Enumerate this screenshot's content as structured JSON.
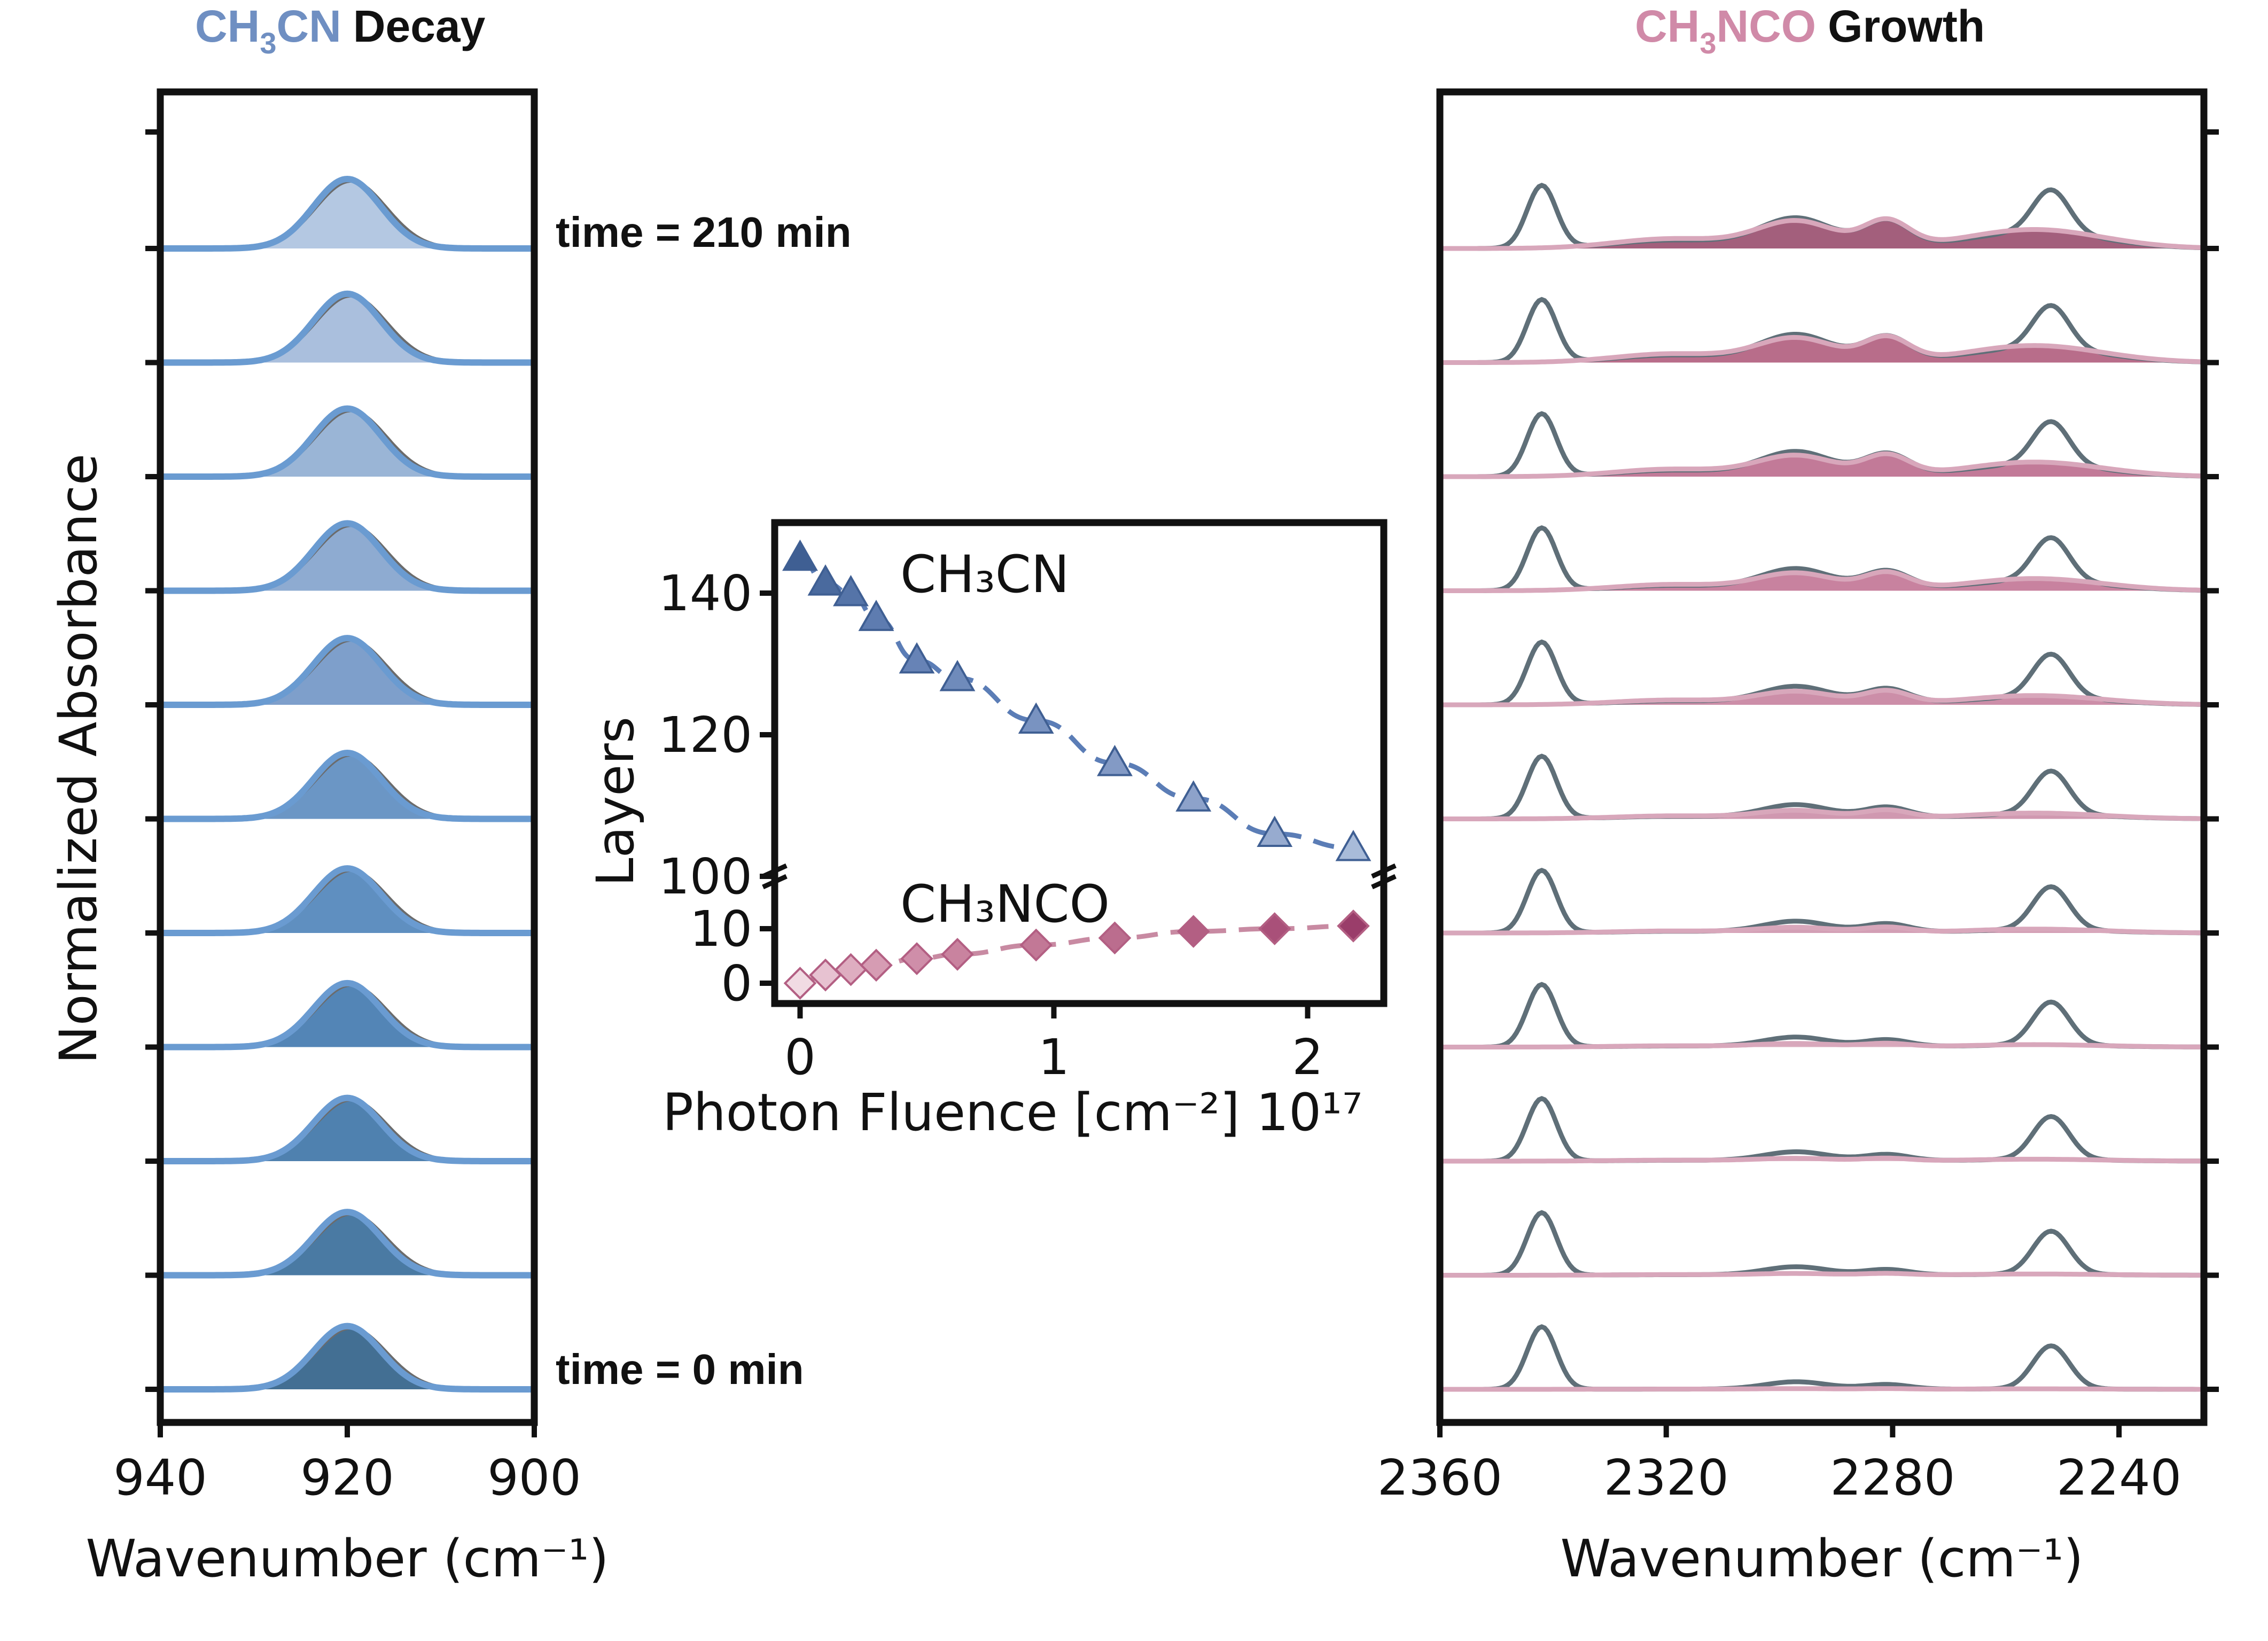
{
  "chart_data": [
    {
      "type": "line",
      "name": "ch3cn-decay",
      "title": {
        "species": "CH3CN",
        "subscript": "3",
        "prefix": "CH",
        "suffix": "CN",
        "word": "Decay"
      },
      "xlabel": "Wavenumber (cm⁻¹)",
      "ylabel": "Normalized Absorbance",
      "xlim": [
        940,
        900
      ],
      "xticks": [
        "940",
        "920",
        "900"
      ],
      "xtick_values": [
        940,
        920,
        900
      ],
      "time_labels": {
        "top": "time = 210 min",
        "bottom": "time = 0 min"
      },
      "peak_center": 920,
      "peak_width": 3.6,
      "n_traces": 11,
      "peak_heights": [
        0.91,
        0.91,
        0.91,
        0.92,
        0.93,
        0.95,
        0.96,
        0.97,
        0.98,
        0.99,
        1.0
      ],
      "fill_colors": [
        "#436f93",
        "#4a7aa3",
        "#4f81af",
        "#5385b6",
        "#5f8fc0",
        "#6b96c5",
        "#7e9fcb",
        "#8eabd1",
        "#9ab5d6",
        "#aabfdd",
        "#b4c8e2"
      ],
      "line_color": "#6a9bd1"
    },
    {
      "type": "scatter",
      "name": "layers-vs-fluence",
      "xlabel": "Photon Fluence [cm⁻²] 10¹⁷",
      "ylabel": "Layers",
      "xlim": [
        -0.1,
        2.3
      ],
      "xticks": [
        "0",
        "1",
        "2"
      ],
      "xtick_values": [
        0,
        1,
        2
      ],
      "yticks_upper": [
        "100",
        "120",
        "140"
      ],
      "ytick_upper_values": [
        100,
        120,
        140
      ],
      "yticks_lower": [
        "0",
        "10"
      ],
      "ytick_lower_values": [
        0,
        10
      ],
      "series": [
        {
          "name": "CH₃CN",
          "label": "CH₃CN",
          "marker": "triangle",
          "x": [
            0.0,
            0.1,
            0.2,
            0.3,
            0.46,
            0.62,
            0.93,
            1.24,
            1.55,
            1.87,
            2.18
          ],
          "y": [
            145,
            141.5,
            140,
            136.5,
            130.5,
            128,
            122,
            116,
            111,
            106,
            104
          ],
          "colors": [
            "#3f5f93",
            "#4a6a9e",
            "#5574a8",
            "#5e7cb0",
            "#6783b6",
            "#6f8bbb",
            "#7993c1",
            "#839ac5",
            "#8da2ca",
            "#97abcf",
            "#a8bbd9"
          ]
        },
        {
          "name": "CH₃NCO",
          "label": "CH₃NCO",
          "marker": "diamond",
          "x": [
            0.0,
            0.1,
            0.2,
            0.3,
            0.46,
            0.62,
            0.93,
            1.24,
            1.55,
            1.87,
            2.18
          ],
          "y": [
            0,
            1.5,
            2.5,
            3.3,
            4.5,
            5.3,
            7,
            8.3,
            9.5,
            10,
            10.5
          ],
          "colors": [
            "#f1dbe3",
            "#e7c2d1",
            "#deadc0",
            "#d69cb3",
            "#cf8ea9",
            "#c9839f",
            "#c27896",
            "#bb6d8e",
            "#b35f83",
            "#a95079",
            "#9a3d6a"
          ]
        }
      ]
    },
    {
      "type": "line",
      "name": "ch3nco-growth",
      "title": {
        "species": "CH3NCO",
        "subscript": "3",
        "prefix": "CH",
        "suffix": "NCO",
        "word": "Growth"
      },
      "xlabel": "Wavenumber (cm⁻¹)",
      "xlim": [
        2360,
        2225
      ],
      "xticks": [
        "2360",
        "2320",
        "2280",
        "2240"
      ],
      "xtick_values": [
        2360,
        2320,
        2280,
        2240
      ],
      "n_traces": 11,
      "gray_peaks": [
        {
          "center": 2342,
          "width": 2.6,
          "height": 0.9
        },
        {
          "center": 2252,
          "width": 3.2,
          "height": 0.62
        },
        {
          "center": 2297,
          "width": 5.5,
          "height": 0.1
        },
        {
          "center": 2281,
          "width": 4.0,
          "height": 0.06
        }
      ],
      "pink_components": [
        {
          "center": 2319,
          "width": 10,
          "rel": 0.18
        },
        {
          "center": 2297,
          "width": 7,
          "rel": 0.5
        },
        {
          "center": 2281,
          "width": 4,
          "rel": 0.48
        },
        {
          "center": 2255,
          "width": 12,
          "rel": 0.35
        }
      ],
      "growth_scale": [
        0.02,
        0.05,
        0.08,
        0.1,
        0.16,
        0.24,
        0.38,
        0.5,
        0.6,
        0.7,
        0.78
      ],
      "fill_colors": [
        "#eed8e0",
        "#e8cbd6",
        "#e1bccb",
        "#daaebf",
        "#d39fb5",
        "#d098b0",
        "#cc8ea8",
        "#c8829f",
        "#c27a98",
        "#b86d8a",
        "#a35f7c"
      ],
      "line_color": "#d8a7bb",
      "gray_color": "#5f6f78"
    }
  ],
  "headers": {
    "left_species_main": "CH",
    "left_species_sub": "3",
    "left_species_tail": "CN",
    "left_word": "Decay",
    "right_species_main": "CH",
    "right_species_sub": "3",
    "right_species_tail": "NCO",
    "right_word": "Growth"
  },
  "colors": {
    "blue_header": "#6f8fc2",
    "pink_header": "#d08aa8",
    "blue_curve": "#5b7db6",
    "pink_curve": "#c88aa2"
  }
}
